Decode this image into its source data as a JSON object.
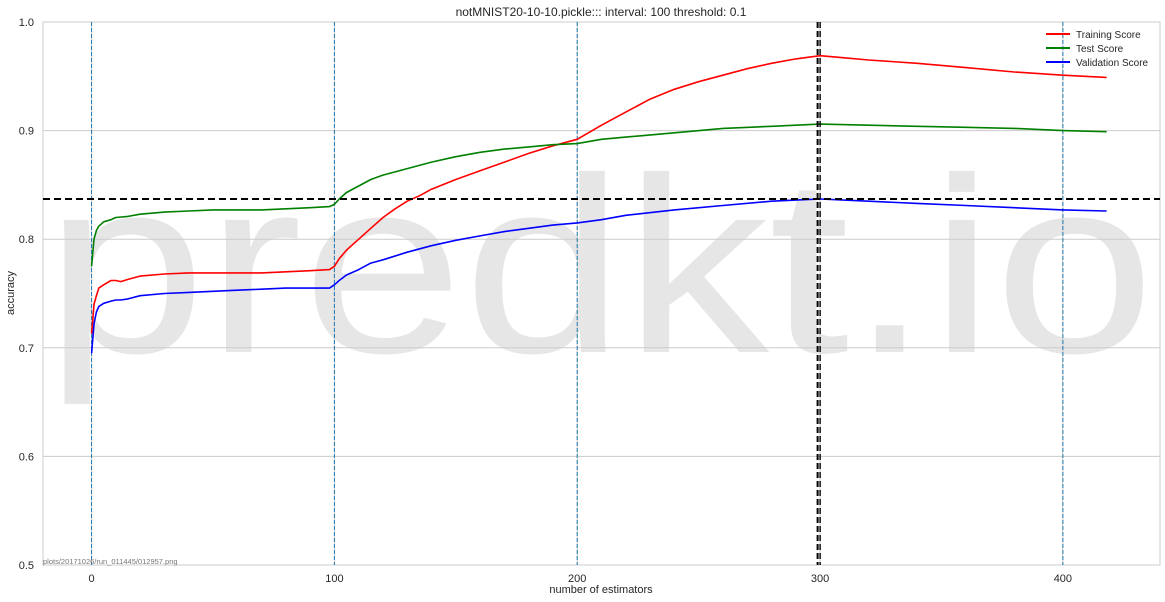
{
  "chart_data": {
    "type": "line",
    "title": "notMNIST20-10-10.pickle::: interval: 100 threshold: 0.1",
    "xlabel": "number of estimators",
    "ylabel": "accuracy",
    "xlim": [
      -20,
      440
    ],
    "ylim": [
      0.5,
      1.0
    ],
    "xticks": [
      "0",
      "100",
      "200",
      "300",
      "400"
    ],
    "yticks": [
      "0.5",
      "0.6",
      "0.7",
      "0.8",
      "0.9",
      "1.0"
    ],
    "grid": true,
    "legend_position": "top-right",
    "vertical_interval_lines": [
      0,
      100,
      200,
      400
    ],
    "best_x": 299,
    "best_y": 0.837,
    "watermark": "predkt.io",
    "footer_note": "plots/20171026/run_011445/012957.png",
    "colors": {
      "training": "#ff0000",
      "test": "#008000",
      "validation": "#0000ff",
      "interval": "#1f77b4",
      "best": "#000000"
    },
    "series": [
      {
        "name": "Training Score",
        "color": "#ff0000",
        "x": [
          0,
          1,
          2,
          3,
          5,
          8,
          10,
          12,
          15,
          20,
          30,
          40,
          50,
          60,
          70,
          80,
          90,
          98,
          100,
          102,
          105,
          110,
          115,
          120,
          125,
          130,
          135,
          140,
          150,
          160,
          170,
          180,
          190,
          200,
          210,
          220,
          230,
          240,
          250,
          260,
          270,
          280,
          290,
          300,
          310,
          320,
          340,
          360,
          380,
          400,
          418
        ],
        "values": [
          0.713,
          0.74,
          0.748,
          0.755,
          0.758,
          0.762,
          0.762,
          0.761,
          0.763,
          0.766,
          0.768,
          0.769,
          0.769,
          0.769,
          0.769,
          0.77,
          0.771,
          0.772,
          0.775,
          0.782,
          0.79,
          0.8,
          0.81,
          0.82,
          0.828,
          0.835,
          0.84,
          0.846,
          0.855,
          0.863,
          0.871,
          0.879,
          0.886,
          0.892,
          0.905,
          0.917,
          0.929,
          0.938,
          0.945,
          0.951,
          0.957,
          0.962,
          0.966,
          0.969,
          0.967,
          0.965,
          0.962,
          0.958,
          0.954,
          0.951,
          0.949
        ]
      },
      {
        "name": "Test Score",
        "color": "#008000",
        "x": [
          0,
          1,
          2,
          3,
          5,
          8,
          10,
          15,
          20,
          30,
          40,
          50,
          60,
          70,
          80,
          90,
          98,
          100,
          102,
          105,
          110,
          115,
          120,
          130,
          140,
          150,
          160,
          170,
          180,
          190,
          200,
          210,
          220,
          240,
          260,
          280,
          300,
          320,
          340,
          360,
          380,
          400,
          418
        ],
        "values": [
          0.775,
          0.8,
          0.808,
          0.812,
          0.816,
          0.818,
          0.82,
          0.821,
          0.823,
          0.825,
          0.826,
          0.827,
          0.827,
          0.827,
          0.828,
          0.829,
          0.83,
          0.832,
          0.837,
          0.843,
          0.849,
          0.855,
          0.859,
          0.865,
          0.871,
          0.876,
          0.88,
          0.883,
          0.885,
          0.887,
          0.888,
          0.892,
          0.894,
          0.898,
          0.902,
          0.904,
          0.906,
          0.905,
          0.904,
          0.903,
          0.902,
          0.9,
          0.899
        ]
      },
      {
        "name": "Validation Score",
        "color": "#0000ff",
        "x": [
          0,
          1,
          2,
          3,
          5,
          8,
          10,
          12,
          15,
          20,
          30,
          40,
          50,
          60,
          70,
          80,
          90,
          98,
          100,
          102,
          105,
          110,
          115,
          120,
          130,
          140,
          150,
          160,
          170,
          180,
          190,
          200,
          210,
          220,
          240,
          260,
          280,
          290,
          300,
          320,
          340,
          360,
          380,
          400,
          418
        ],
        "values": [
          0.695,
          0.722,
          0.733,
          0.738,
          0.741,
          0.743,
          0.744,
          0.744,
          0.745,
          0.748,
          0.75,
          0.751,
          0.752,
          0.753,
          0.754,
          0.755,
          0.755,
          0.755,
          0.758,
          0.762,
          0.767,
          0.772,
          0.778,
          0.781,
          0.788,
          0.794,
          0.799,
          0.803,
          0.807,
          0.81,
          0.813,
          0.815,
          0.818,
          0.822,
          0.827,
          0.831,
          0.835,
          0.836,
          0.837,
          0.835,
          0.833,
          0.831,
          0.829,
          0.827,
          0.826
        ]
      }
    ]
  }
}
